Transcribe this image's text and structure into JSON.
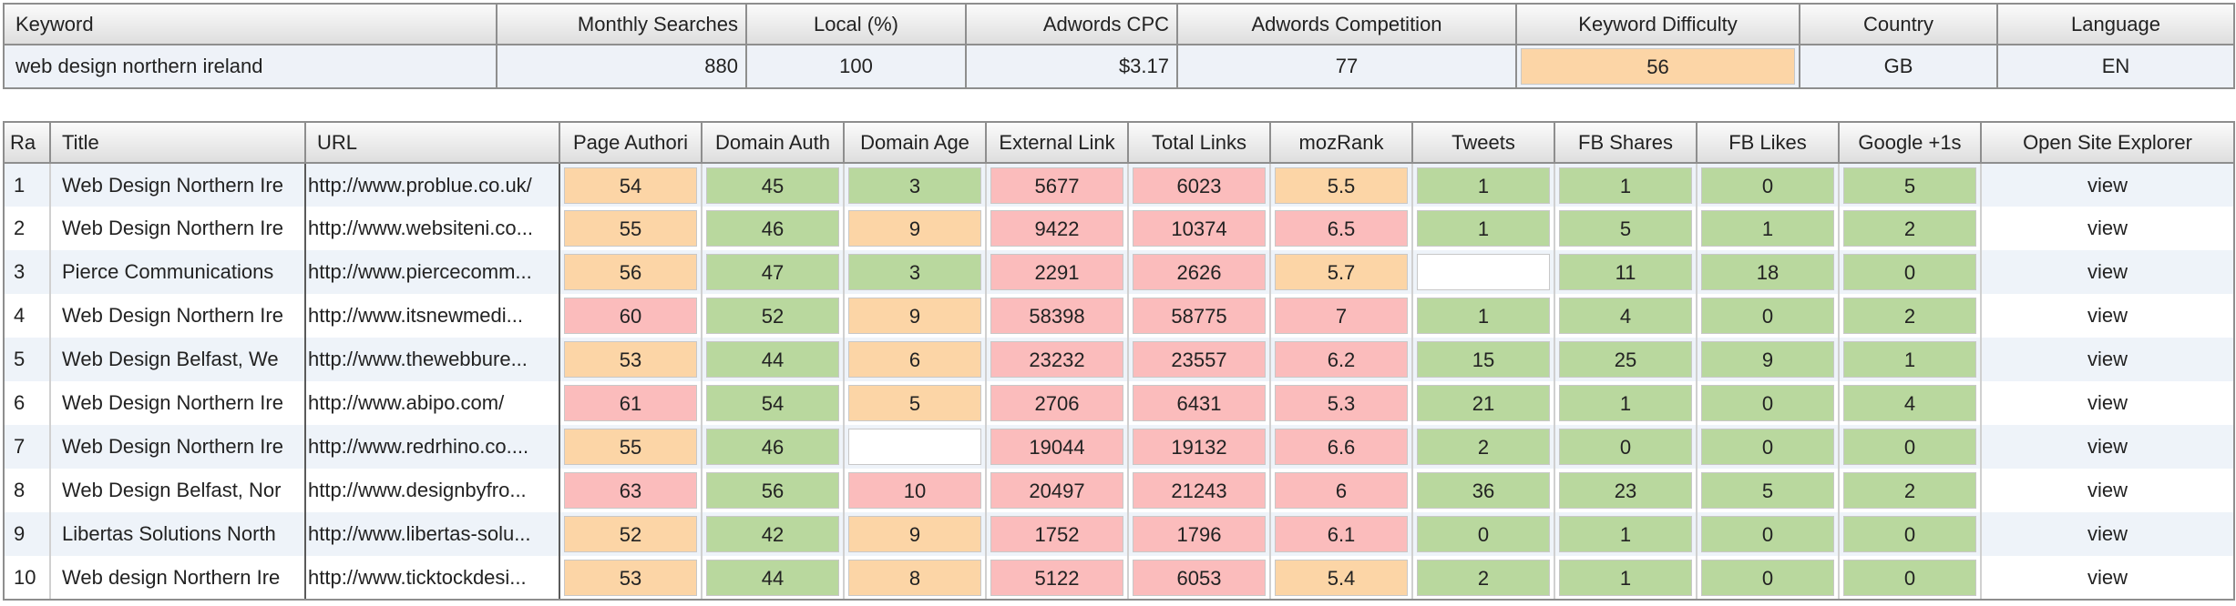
{
  "keyword_summary": {
    "headers": [
      "Keyword",
      "Monthly Searches",
      "Local (%)",
      "Adwords CPC",
      "Adwords Competition",
      "Keyword Difficulty",
      "Country",
      "Language"
    ],
    "row": {
      "keyword": "web design northern ireland",
      "monthly_searches": "880",
      "local": "100",
      "cpc": "$3.17",
      "competition": "77",
      "difficulty": "56",
      "country": "GB",
      "language": "EN"
    }
  },
  "results": {
    "headers": [
      "Ra",
      "Title",
      "URL",
      "Page Authori",
      "Domain Auth",
      "Domain Age",
      "External Link",
      "Total Links",
      "mozRank",
      "Tweets",
      "FB Shares",
      "FB Likes",
      "Google +1s",
      "Open Site Explorer"
    ],
    "rows": [
      {
        "rank": "1",
        "title": "Web Design Northern Ire",
        "url": "http://www.problue.co.uk/",
        "pa": "54",
        "da": "45",
        "age": "3",
        "ext": "5677",
        "total": "6023",
        "moz": "5.5",
        "tweets": "1",
        "shares": "1",
        "likes": "0",
        "plus": "5",
        "view": "view"
      },
      {
        "rank": "2",
        "title": "Web Design Northern Ire",
        "url": "http://www.websiteni.co...",
        "pa": "55",
        "da": "46",
        "age": "9",
        "ext": "9422",
        "total": "10374",
        "moz": "6.5",
        "tweets": "1",
        "shares": "5",
        "likes": "1",
        "plus": "2",
        "view": "view"
      },
      {
        "rank": "3",
        "title": "Pierce Communications",
        "url": "http://www.piercecomm...",
        "pa": "56",
        "da": "47",
        "age": "3",
        "ext": "2291",
        "total": "2626",
        "moz": "5.7",
        "tweets": "",
        "shares": "11",
        "likes": "18",
        "plus": "0",
        "view": "view"
      },
      {
        "rank": "4",
        "title": "Web Design Northern Ire",
        "url": "http://www.itsnewmedi...",
        "pa": "60",
        "da": "52",
        "age": "9",
        "ext": "58398",
        "total": "58775",
        "moz": "7",
        "tweets": "1",
        "shares": "4",
        "likes": "0",
        "plus": "2",
        "view": "view"
      },
      {
        "rank": "5",
        "title": "Web Design Belfast, We",
        "url": "http://www.thewebbure...",
        "pa": "53",
        "da": "44",
        "age": "6",
        "ext": "23232",
        "total": "23557",
        "moz": "6.2",
        "tweets": "15",
        "shares": "25",
        "likes": "9",
        "plus": "1",
        "view": "view"
      },
      {
        "rank": "6",
        "title": "Web Design Northern Ire",
        "url": "http://www.abipo.com/",
        "pa": "61",
        "da": "54",
        "age": "5",
        "ext": "2706",
        "total": "6431",
        "moz": "5.3",
        "tweets": "21",
        "shares": "1",
        "likes": "0",
        "plus": "4",
        "view": "view"
      },
      {
        "rank": "7",
        "title": "Web Design Northern Ire",
        "url": "http://www.redrhino.co....",
        "pa": "55",
        "da": "46",
        "age": "",
        "ext": "19044",
        "total": "19132",
        "moz": "6.6",
        "tweets": "2",
        "shares": "0",
        "likes": "0",
        "plus": "0",
        "view": "view"
      },
      {
        "rank": "8",
        "title": "Web Design Belfast, Nor",
        "url": "http://www.designbyfro...",
        "pa": "63",
        "da": "56",
        "age": "10",
        "ext": "20497",
        "total": "21243",
        "moz": "6",
        "tweets": "36",
        "shares": "23",
        "likes": "5",
        "plus": "2",
        "view": "view"
      },
      {
        "rank": "9",
        "title": "Libertas Solutions North",
        "url": "http://www.libertas-solu...",
        "pa": "52",
        "da": "42",
        "age": "9",
        "ext": "1752",
        "total": "1796",
        "moz": "6.1",
        "tweets": "0",
        "shares": "1",
        "likes": "0",
        "plus": "0",
        "view": "view"
      },
      {
        "rank": "10",
        "title": "Web design Northern Ire",
        "url": "http://www.ticktockdesi...",
        "pa": "53",
        "da": "44",
        "age": "8",
        "ext": "5122",
        "total": "6053",
        "moz": "5.4",
        "tweets": "2",
        "shares": "1",
        "likes": "0",
        "plus": "0",
        "view": "view"
      }
    ],
    "colors": [
      [
        "o",
        "g",
        "g",
        "p",
        "p",
        "o",
        "g",
        "g",
        "g",
        "g"
      ],
      [
        "o",
        "g",
        "o",
        "p",
        "p",
        "p",
        "g",
        "g",
        "g",
        "g"
      ],
      [
        "o",
        "g",
        "g",
        "p",
        "p",
        "o",
        "w",
        "g",
        "g",
        "g"
      ],
      [
        "p",
        "g",
        "o",
        "p",
        "p",
        "p",
        "g",
        "g",
        "g",
        "g"
      ],
      [
        "o",
        "g",
        "o",
        "p",
        "p",
        "p",
        "g",
        "g",
        "g",
        "g"
      ],
      [
        "p",
        "g",
        "o",
        "p",
        "p",
        "p",
        "g",
        "g",
        "g",
        "g"
      ],
      [
        "o",
        "g",
        "w",
        "p",
        "p",
        "p",
        "g",
        "g",
        "g",
        "g"
      ],
      [
        "p",
        "g",
        "p",
        "p",
        "p",
        "p",
        "g",
        "g",
        "g",
        "g"
      ],
      [
        "o",
        "g",
        "o",
        "p",
        "p",
        "p",
        "g",
        "g",
        "g",
        "g"
      ],
      [
        "o",
        "g",
        "o",
        "p",
        "p",
        "o",
        "g",
        "g",
        "g",
        "g"
      ]
    ],
    "palette": {
      "g": "#b9d89e",
      "o": "#fcd5a6",
      "p": "#fbbcbc",
      "w": "#ffffff"
    }
  }
}
